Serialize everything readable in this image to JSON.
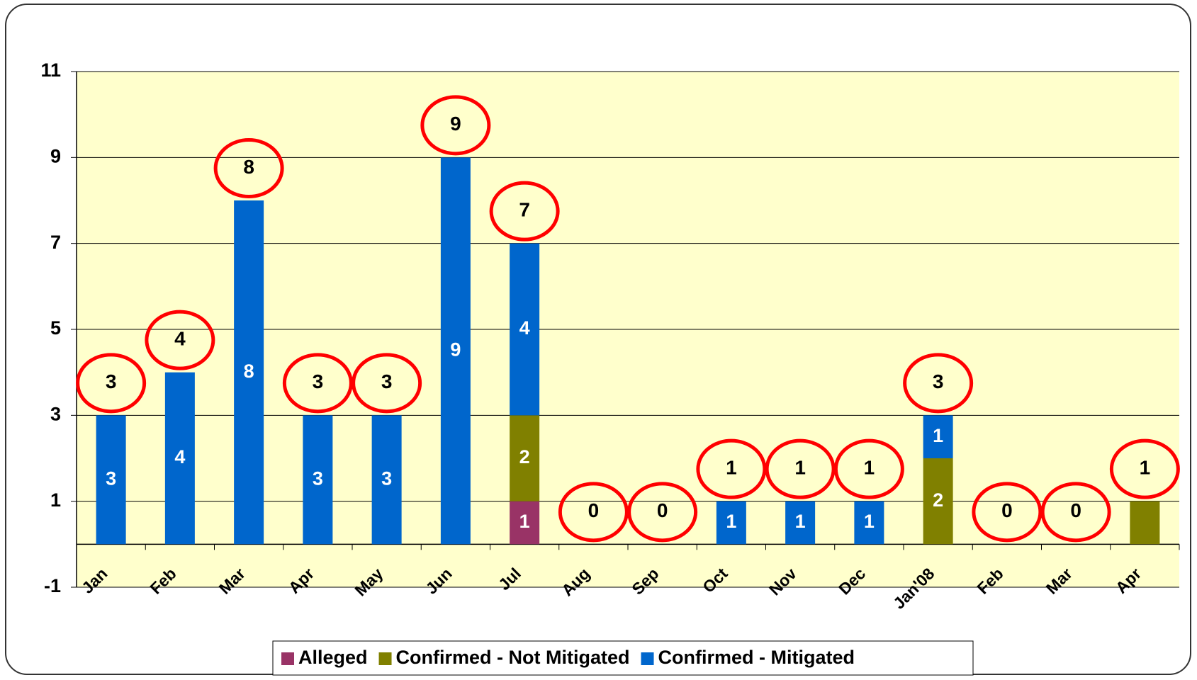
{
  "chart_data": {
    "type": "stacked_bar",
    "categories": [
      "Jan",
      "Feb",
      "Mar",
      "Apr",
      "May",
      "Jun",
      "Jul",
      "Aug",
      "Sep",
      "Oct",
      "Nov",
      "Dec",
      "Jan'08",
      "Feb",
      "Mar",
      "Apr"
    ],
    "series": [
      {
        "name": "Alleged",
        "color": "#993366",
        "values": [
          0,
          0,
          0,
          0,
          0,
          0,
          1,
          0,
          0,
          0,
          0,
          0,
          0,
          0,
          0,
          0
        ],
        "value_labels": [
          null,
          null,
          null,
          null,
          null,
          null,
          "1",
          null,
          null,
          null,
          null,
          null,
          null,
          null,
          null,
          null
        ]
      },
      {
        "name": "Confirmed - Not Mitigated",
        "color": "#808000",
        "values": [
          0,
          0,
          0,
          0,
          0,
          0,
          2,
          0,
          0,
          0,
          0,
          0,
          2,
          0,
          0,
          1
        ],
        "value_labels": [
          null,
          null,
          null,
          null,
          null,
          null,
          "2",
          null,
          null,
          null,
          null,
          null,
          "2",
          null,
          null,
          null
        ]
      },
      {
        "name": "Confirmed - Mitigated",
        "color": "#0066cc",
        "values": [
          3,
          4,
          8,
          3,
          3,
          9,
          4,
          0,
          0,
          1,
          1,
          1,
          1,
          0,
          0,
          0
        ],
        "value_labels": [
          "3",
          "4",
          "8",
          "3",
          "3",
          "9",
          "4",
          null,
          null,
          "1",
          "1",
          "1",
          "1",
          null,
          null,
          null
        ]
      }
    ],
    "totals": [
      3,
      4,
      8,
      3,
      3,
      9,
      7,
      0,
      0,
      1,
      1,
      1,
      3,
      0,
      0,
      1
    ],
    "ylim": [
      -1,
      11
    ],
    "yticks": [
      -1,
      1,
      3,
      5,
      7,
      9,
      11
    ],
    "grid": true,
    "legend": "bottom"
  }
}
